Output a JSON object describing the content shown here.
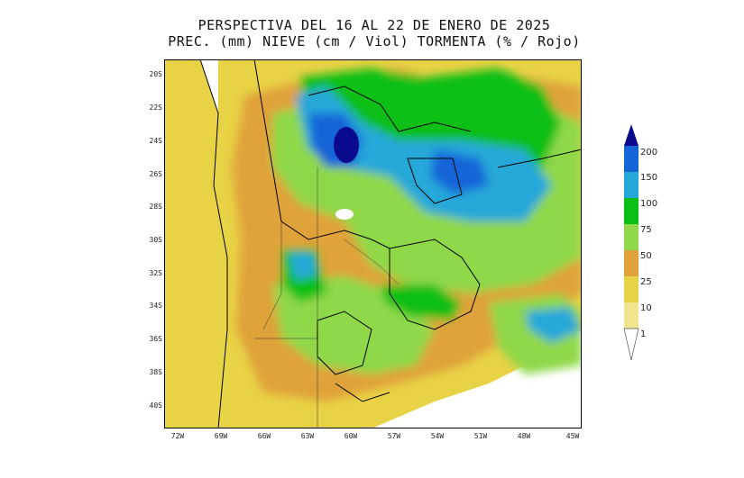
{
  "title": {
    "line1": "PERSPECTIVA DEL 16 AL 22 DE ENERO DE 2025",
    "line2": "PREC. (mm) NIEVE (cm / Viol) TORMENTA (% / Rojo)"
  },
  "axes": {
    "lat_labels": [
      "20S",
      "22S",
      "24S",
      "26S",
      "28S",
      "30S",
      "32S",
      "34S",
      "36S",
      "38S",
      "40S"
    ],
    "lon_labels": [
      "72W",
      "69W",
      "66W",
      "63W",
      "60W",
      "57W",
      "54W",
      "51W",
      "48W",
      "45W"
    ]
  },
  "colorbar": {
    "labels": [
      "200",
      "150",
      "100",
      "75",
      "50",
      "25",
      "10",
      "1"
    ],
    "colors": [
      "#0a0a8c",
      "#1565d8",
      "#25a8d8",
      "#0bbf16",
      "#8fd84a",
      "#e0a23a",
      "#e8d245",
      "#ffffff"
    ]
  }
}
